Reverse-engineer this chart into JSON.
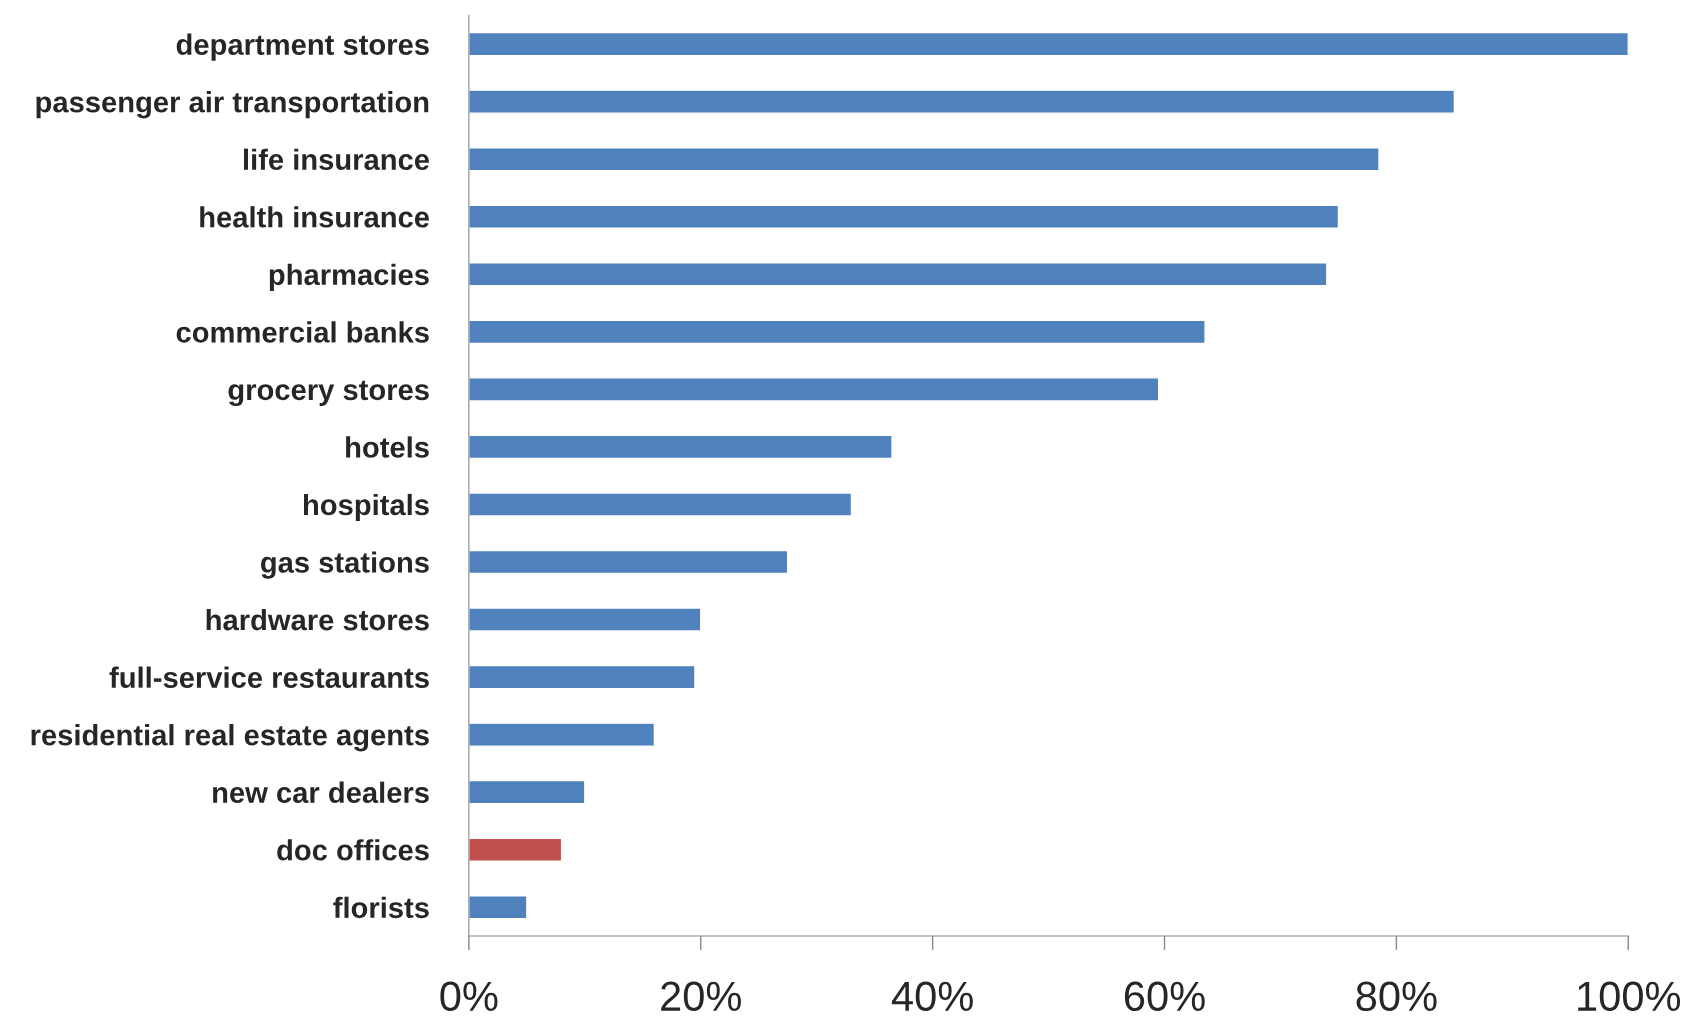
{
  "chart_data": {
    "type": "bar",
    "orientation": "horizontal",
    "categories": [
      "department stores",
      "passenger air transportation",
      "life insurance",
      "health insurance",
      "pharmacies",
      "commercial banks",
      "grocery stores",
      "hotels",
      "hospitals",
      "gas stations",
      "hardware stores",
      "full-service restaurants",
      "residential real estate agents",
      "new car dealers",
      "doc offices",
      "florists"
    ],
    "values": [
      100,
      85,
      78.5,
      75,
      74,
      63.5,
      59.5,
      36.5,
      33,
      27.5,
      20,
      19.5,
      16,
      10,
      8,
      5
    ],
    "colors": [
      "#4f81bd",
      "#4f81bd",
      "#4f81bd",
      "#4f81bd",
      "#4f81bd",
      "#4f81bd",
      "#4f81bd",
      "#4f81bd",
      "#4f81bd",
      "#4f81bd",
      "#4f81bd",
      "#4f81bd",
      "#4f81bd",
      "#4f81bd",
      "#c0504d",
      "#4f81bd"
    ],
    "xlim": [
      0,
      100
    ],
    "xticks": [
      {
        "value": 0,
        "label": "0%"
      },
      {
        "value": 20,
        "label": "20%"
      },
      {
        "value": 40,
        "label": "40%"
      },
      {
        "value": 60,
        "label": "60%"
      },
      {
        "value": 80,
        "label": "80%"
      },
      {
        "value": 100,
        "label": "100%"
      }
    ],
    "grid": false,
    "legend": false
  }
}
